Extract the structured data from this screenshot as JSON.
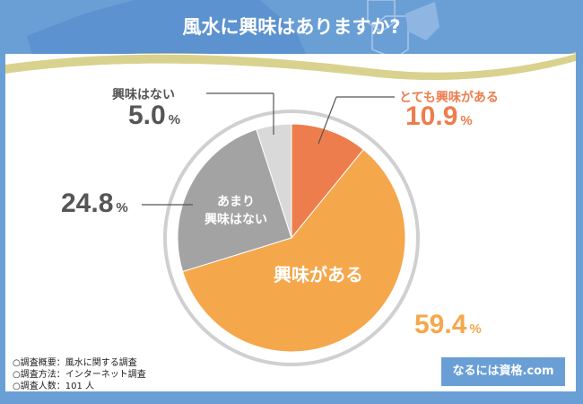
{
  "title": "風水に興味はありますか?",
  "chart_data": {
    "type": "pie",
    "title": "風水に興味はありますか?",
    "slices": [
      {
        "label": "とても興味がある",
        "value": 10.9,
        "color": "#ee7d4d"
      },
      {
        "label": "興味がある",
        "value": 59.4,
        "color": "#f5a74b"
      },
      {
        "label": "あまり興味はない",
        "value": 24.8,
        "color": "#a3a3a3"
      },
      {
        "label": "興味はない",
        "value": 5.0,
        "color": "#d9d9d9"
      }
    ],
    "start": "top",
    "direction": "clockwise"
  },
  "labels": {
    "s0": "とても興味がある",
    "s0v": "10.9",
    "s1": "興味がある",
    "s1v": "59.4",
    "s2a": "あまり",
    "s2b": "興味はない",
    "s2v": "24.8",
    "s3": "興味はない",
    "s3v": "5.0",
    "unit": "%"
  },
  "notes": [
    "○調査概要：風水に関する調査",
    "○調査方法：インターネット調査",
    "○調査人数：101 人"
  ],
  "brand": "なるには資格.com"
}
